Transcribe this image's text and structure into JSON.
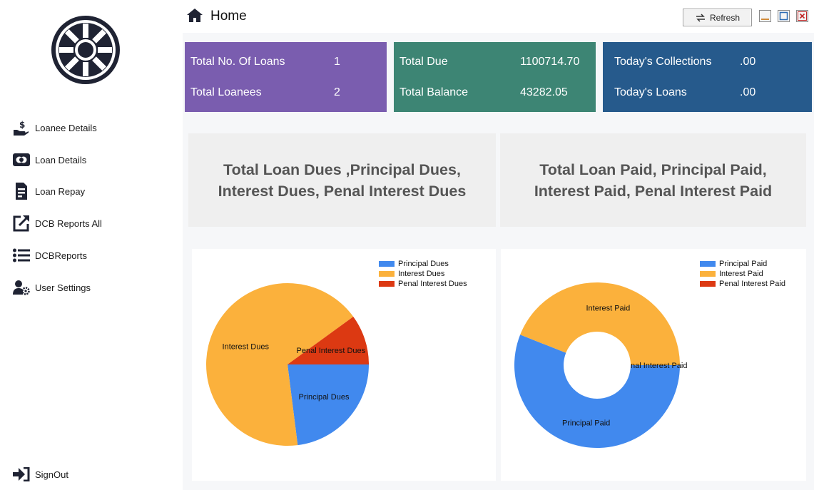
{
  "app": {
    "title": "Home"
  },
  "toolbar": {
    "refresh_label": "Refresh"
  },
  "sidebar": {
    "items": [
      {
        "label": "Loanee Details",
        "icon": "hand-dollar-icon"
      },
      {
        "label": "Loan Details",
        "icon": "credit-card-icon"
      },
      {
        "label": "Loan Repay",
        "icon": "receipt-icon"
      },
      {
        "label": "DCB Reports All",
        "icon": "external-link-icon"
      },
      {
        "label": "DCBReports",
        "icon": "list-icon"
      },
      {
        "label": "User Settings",
        "icon": "user-cog-icon"
      }
    ],
    "signout_label": "SignOut"
  },
  "cards": [
    {
      "color": "#7a5daf",
      "rows": [
        {
          "label": "Total No. Of Loans",
          "value": "1"
        },
        {
          "label": "Total Loanees",
          "value": "2"
        }
      ]
    },
    {
      "color": "#3d8574",
      "rows": [
        {
          "label": "Total Due",
          "value": "1100714.70"
        },
        {
          "label": "Total Balance",
          "value": "43282.05"
        }
      ]
    },
    {
      "color": "#265a8c",
      "rows": [
        {
          "label": "Today's Collections",
          "value": ".00"
        },
        {
          "label": "Today's Loans",
          "value": ".00"
        }
      ]
    }
  ],
  "panels": [
    {
      "title": "Total Loan Dues ,Principal Dues, Interest Dues, Penal Interest Dues"
    },
    {
      "title": "Total Loan Paid, Principal Paid, Interest Paid, Penal Interest Paid"
    }
  ],
  "colors": {
    "principal": "#4189ee",
    "interest": "#fbb13c",
    "penal": "#dc3912"
  },
  "chart_data": [
    {
      "type": "pie",
      "series": [
        {
          "name": "Principal Dues",
          "value": 23
        },
        {
          "name": "Interest Dues",
          "value": 67
        },
        {
          "name": "Penal Interest Dues",
          "value": 10
        }
      ]
    },
    {
      "type": "pie",
      "donut": true,
      "series": [
        {
          "name": "Principal Paid",
          "value": 56
        },
        {
          "name": "Interest Paid",
          "value": 44
        },
        {
          "name": "Penal Interest Paid",
          "value": 0
        }
      ]
    }
  ]
}
